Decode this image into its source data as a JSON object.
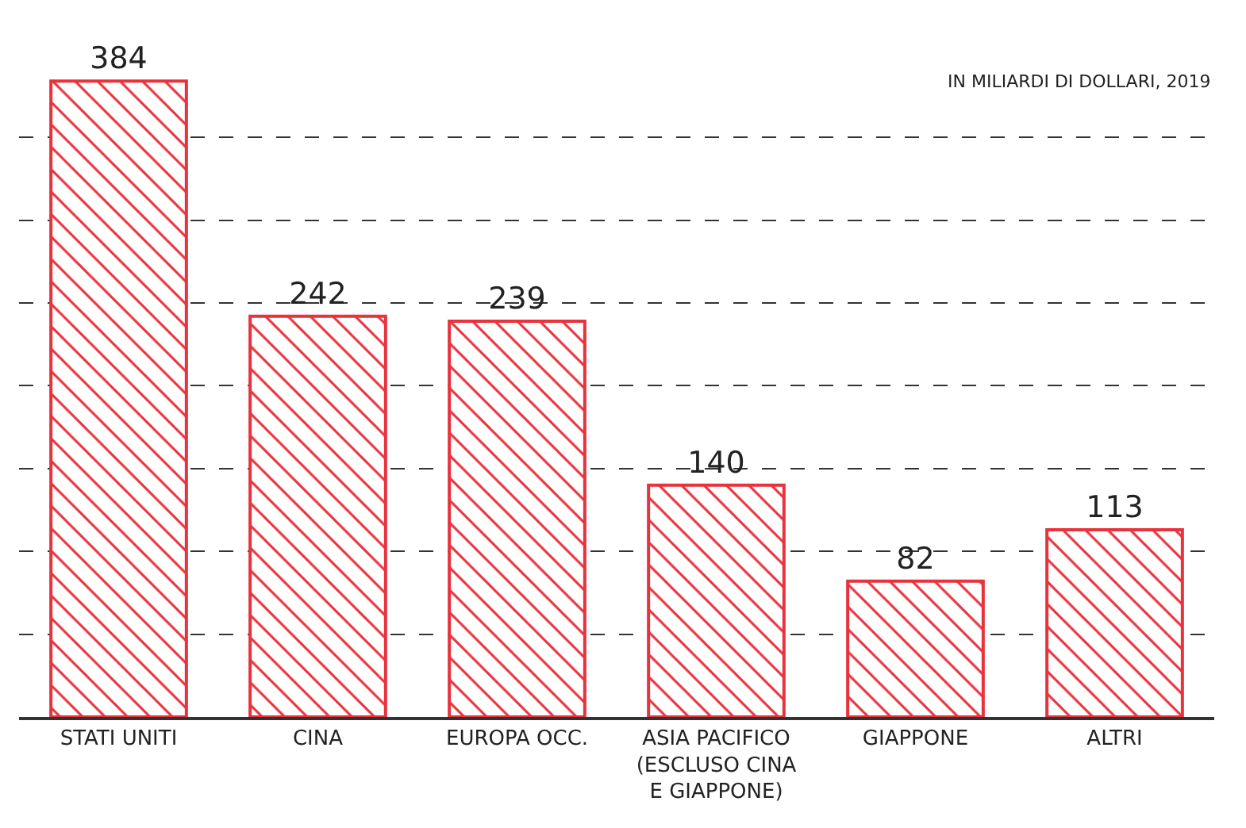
{
  "chart_data": {
    "type": "bar",
    "subtitle": "IN MILIARDI DI DOLLARI, 2019",
    "categories": [
      "STATI UNITI",
      "CINA",
      "EUROPA OCC.",
      "ASIA PACIFICO (ESCLUSO CINA E GIAPPONE)",
      "GIAPPONE",
      "ALTRI"
    ],
    "values": [
      384,
      242,
      239,
      140,
      82,
      113
    ],
    "color": "#e8323c",
    "yticks": [
      {
        "value": 0,
        "label": null
      },
      {
        "value": 50,
        "label": null
      },
      {
        "value": 100,
        "label": null
      },
      {
        "value": 150,
        "label": null
      },
      {
        "value": 200,
        "label": null
      },
      {
        "value": 250,
        "label": null
      },
      {
        "value": 300,
        "label": null
      },
      {
        "value": 350,
        "label": null
      }
    ],
    "tick_labels": "x",
    "grid": "y",
    "data_labels": true
  }
}
